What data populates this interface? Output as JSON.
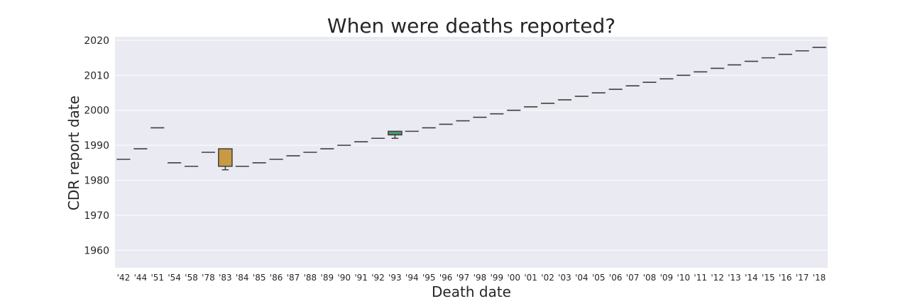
{
  "chart_data": {
    "type": "box",
    "title": "When were deaths reported?",
    "xlabel": "Death date",
    "ylabel": "CDR report date",
    "ylim": [
      1955,
      2021
    ],
    "yticks": [
      1960,
      1970,
      1980,
      1990,
      2000,
      2010,
      2020
    ],
    "grid": true,
    "categories": [
      "'42",
      "'44",
      "'51",
      "'54",
      "'58",
      "'78",
      "'83",
      "'84",
      "'85",
      "'86",
      "'87",
      "'88",
      "'89",
      "'90",
      "'91",
      "'92",
      "'93",
      "'94",
      "'95",
      "'96",
      "'97",
      "'98",
      "'99",
      "'00",
      "'01",
      "'02",
      "'03",
      "'04",
      "'05",
      "'06",
      "'07",
      "'08",
      "'09",
      "'10",
      "'11",
      "'12",
      "'13",
      "'14",
      "'15",
      "'16",
      "'17",
      "'18"
    ],
    "boxes": [
      {
        "median": 1986
      },
      {
        "median": 1989
      },
      {
        "median": 1995
      },
      {
        "median": 1985
      },
      {
        "median": 1984
      },
      {
        "median": 1988
      },
      {
        "median": 1984,
        "q1": 1984,
        "q3": 1989,
        "whisker_low": 1983,
        "whisker_high": 1989,
        "color": "#c79a43"
      },
      {
        "median": 1984
      },
      {
        "median": 1985
      },
      {
        "median": 1986
      },
      {
        "median": 1987
      },
      {
        "median": 1988
      },
      {
        "median": 1989
      },
      {
        "median": 1990
      },
      {
        "median": 1991
      },
      {
        "median": 1992
      },
      {
        "median": 1993,
        "q1": 1993,
        "q3": 1994,
        "whisker_low": 1992,
        "whisker_high": 1994,
        "color": "#4c9a6e"
      },
      {
        "median": 1994
      },
      {
        "median": 1995
      },
      {
        "median": 1996
      },
      {
        "median": 1997
      },
      {
        "median": 1998
      },
      {
        "median": 1999
      },
      {
        "median": 2000
      },
      {
        "median": 2001
      },
      {
        "median": 2002
      },
      {
        "median": 2003
      },
      {
        "median": 2004
      },
      {
        "median": 2005
      },
      {
        "median": 2006
      },
      {
        "median": 2007
      },
      {
        "median": 2008
      },
      {
        "median": 2009
      },
      {
        "median": 2010
      },
      {
        "median": 2011
      },
      {
        "median": 2012
      },
      {
        "median": 2013
      },
      {
        "median": 2014
      },
      {
        "median": 2015
      },
      {
        "median": 2016
      },
      {
        "median": 2017
      },
      {
        "median": 2018
      }
    ]
  },
  "style": {
    "plot_bg": "#eaeaf2",
    "grid_color": "#ffffff",
    "line_color": "#3f3f3f"
  }
}
